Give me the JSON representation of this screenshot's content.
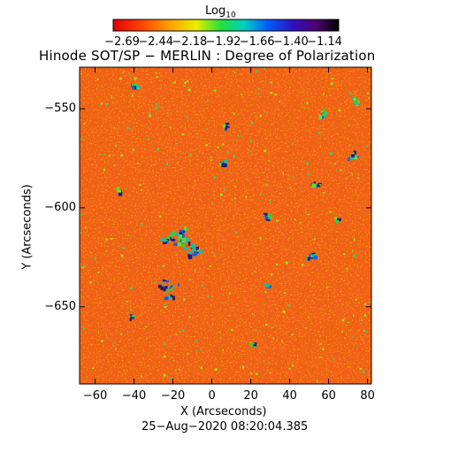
{
  "colorbar": {
    "label_main": "Log",
    "label_sub": "10",
    "tick_labels": [
      "−2.69",
      "−2.44",
      "−2.18",
      "−1.92",
      "−1.66",
      "−1.40",
      "−1.14"
    ],
    "range": [
      -2.69,
      -1.14
    ],
    "colormap": "rainbow (red → yellow → green → cyan → blue → purple → black)"
  },
  "title": "Hinode SOT/SP − MERLIN : Degree of Polarization",
  "x_axis": {
    "label": "X (Arcseconds)",
    "tick_labels": [
      "−60",
      "−40",
      "−20",
      "0",
      "20",
      "40",
      "60",
      "80"
    ],
    "ticks": [
      -60,
      -40,
      -20,
      0,
      20,
      40,
      60,
      80
    ],
    "range": [
      -68,
      82
    ]
  },
  "y_axis": {
    "label": "Y (Arcseconds)",
    "tick_labels": [
      "−550",
      "−600",
      "−650"
    ],
    "ticks": [
      -550,
      -600,
      -650
    ],
    "range": [
      -689,
      -529
    ]
  },
  "timestamp": "25−Aug−2020 08:20:04.385",
  "colors": {
    "background_field": "#f06018",
    "accent_dark": "#10208a",
    "frame": "#000000"
  }
}
